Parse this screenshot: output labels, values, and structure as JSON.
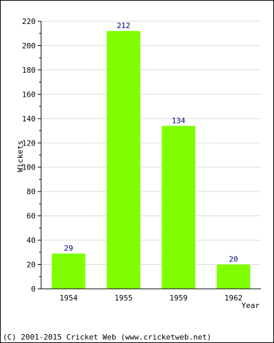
{
  "chart_data": {
    "type": "bar",
    "categories": [
      "1954",
      "1955",
      "1959",
      "1962"
    ],
    "values": [
      29,
      212,
      134,
      20
    ],
    "title": "",
    "xlabel": "Year",
    "ylabel": "Wickets",
    "ylim": [
      0,
      220
    ],
    "ytick_step": 20,
    "grid": true,
    "bar_color": "#80ff00",
    "label_color": "#000080",
    "grid_color": "#dcdcdc"
  },
  "footer": "(C) 2001-2015 Cricket Web (www.cricketweb.net)"
}
